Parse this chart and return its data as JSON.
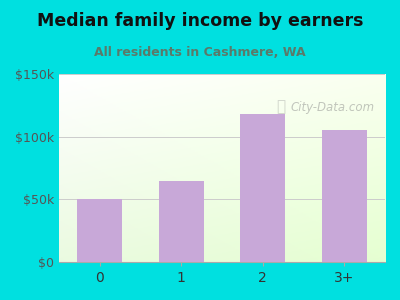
{
  "categories": [
    "0",
    "1",
    "2",
    "3+"
  ],
  "values": [
    50000,
    65000,
    118000,
    105000
  ],
  "bar_color": "#c8a8d8",
  "title": "Median family income by earners",
  "subtitle": "All residents in Cashmere, WA",
  "title_color": "#111111",
  "subtitle_color": "#5a7a6a",
  "outer_bg": "#00e0e0",
  "ylim": [
    0,
    150000
  ],
  "yticks": [
    0,
    50000,
    100000,
    150000
  ],
  "ytick_labels": [
    "$0",
    "$50k",
    "$100k",
    "$150k"
  ],
  "watermark": "City-Data.com"
}
